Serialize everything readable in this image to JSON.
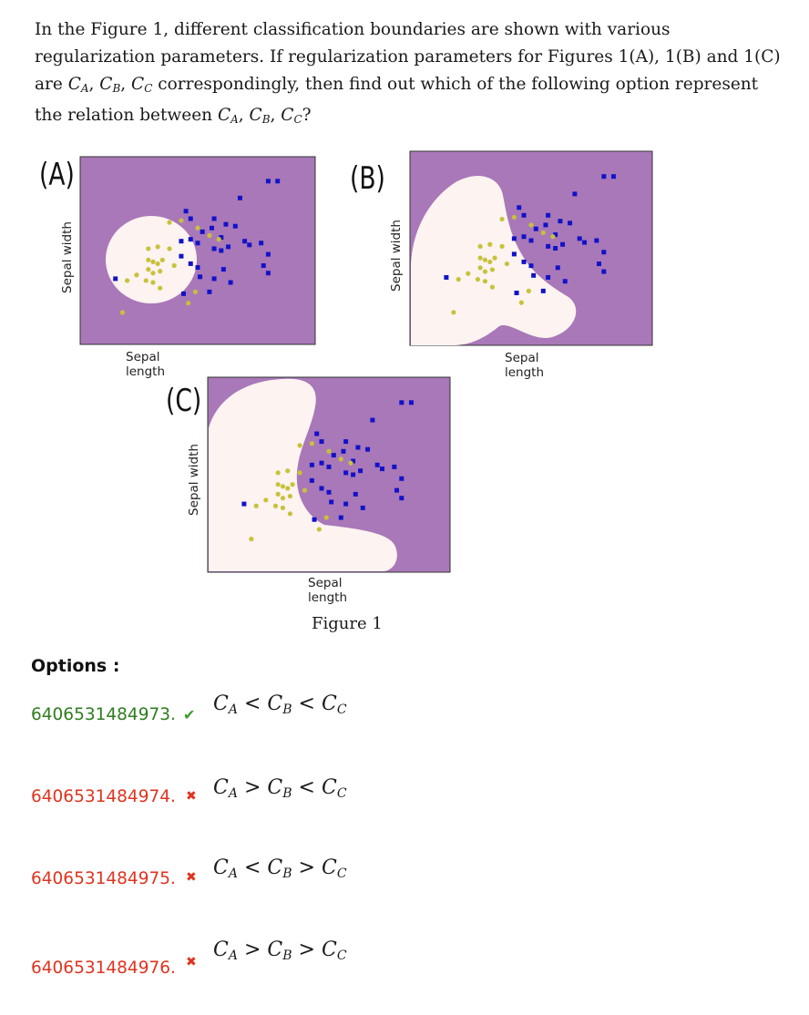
{
  "question": {
    "line1": "In the Figure 1, different classification boundaries are shown with various",
    "line2": "regularization parameters. If regularization parameters for Figures 1(A), 1(B) and 1(C)",
    "line3_pre": "are ",
    "line3_post": " correspondingly, then find out which of the following option represent",
    "line4_pre": "the relation between ",
    "line4_post": "?"
  },
  "figure": {
    "caption": "Figure 1",
    "panels": [
      {
        "label": "(A)",
        "xlabel": "Sepal length",
        "ylabel": "Sepal width"
      },
      {
        "label": "(B)",
        "xlabel": "Sepal length",
        "ylabel": "Sepal width"
      },
      {
        "label": "(C)",
        "xlabel": "Sepal length",
        "ylabel": "Sepal width"
      }
    ],
    "colors": {
      "background": "#a978b8",
      "region": "#fdf3f0",
      "class_blue": "#1212c8",
      "class_yellow": "#c7c23a"
    }
  },
  "options": {
    "heading": "Options :",
    "items": [
      {
        "id": "6406531484973.",
        "status": "correct",
        "mark_icon": "check-icon",
        "ops": [
          "<",
          "<"
        ]
      },
      {
        "id": "6406531484974.",
        "status": "wrong",
        "mark_icon": "cross-icon",
        "ops": [
          ">",
          "<"
        ]
      },
      {
        "id": "6406531484975.",
        "status": "wrong",
        "mark_icon": "cross-icon",
        "ops": [
          "<",
          ">"
        ]
      },
      {
        "id": "6406531484976.",
        "status": "wrong",
        "mark_icon": "cross-icon",
        "ops": [
          ">",
          ">"
        ]
      }
    ]
  }
}
